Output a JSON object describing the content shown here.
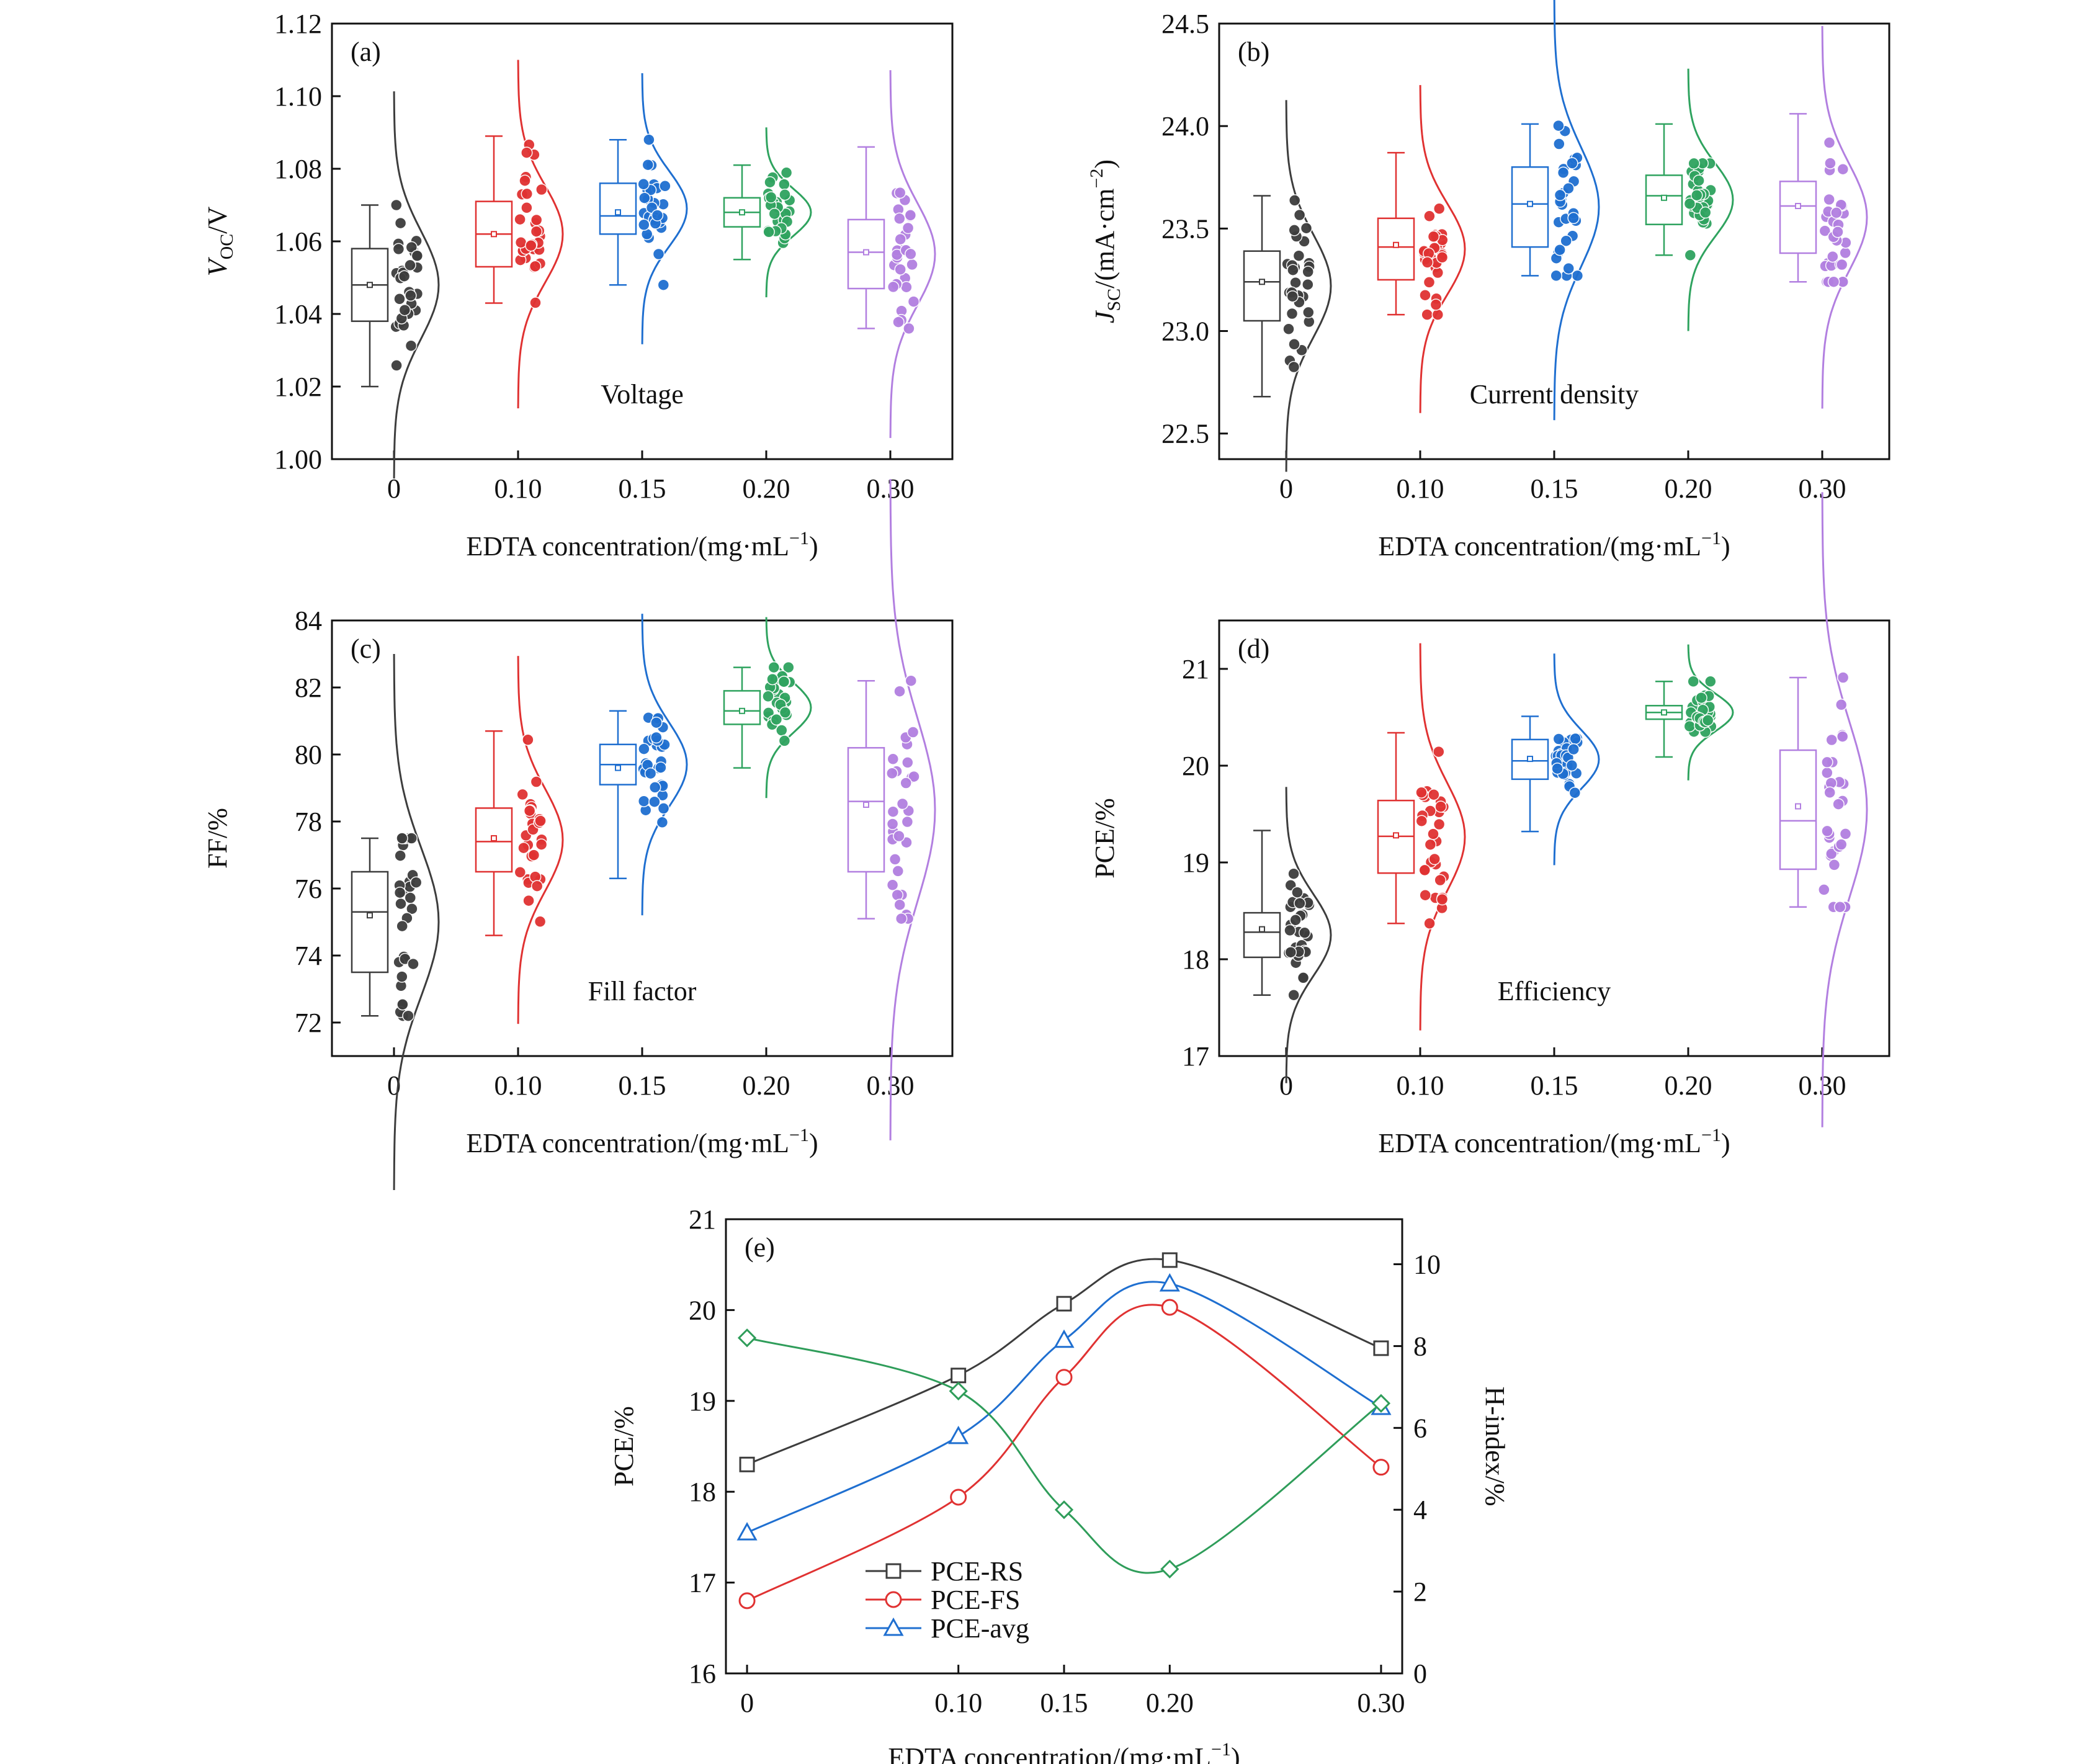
{
  "colors": {
    "black": "#3d3d3d",
    "red": "#e03232",
    "blue": "#1f6fd0",
    "green": "#2fa35f",
    "purple": "#b27fe0",
    "hindex": "#2f9d5a"
  },
  "chart_data": [
    {
      "panel": "(a)",
      "type": "box",
      "annotation": "Voltage",
      "ylabel_main": "V",
      "ylabel_sub": "OC",
      "ylabel_rest": "/V",
      "xlabel": "EDTA concentration/(mg·mL",
      "xlabel_sup": "−1",
      "xlabel_end": ")",
      "categories": [
        "0",
        "0.10",
        "0.15",
        "0.20",
        "0.30"
      ],
      "ylim": [
        1.0,
        1.12
      ],
      "yticks": [
        "1.00",
        "1.02",
        "1.04",
        "1.06",
        "1.08",
        "1.10",
        "1.12"
      ],
      "boxes": [
        {
          "min": 1.02,
          "q1": 1.038,
          "median": 1.048,
          "q3": 1.058,
          "max": 1.07,
          "mean": 1.048
        },
        {
          "min": 1.043,
          "q1": 1.053,
          "median": 1.062,
          "q3": 1.071,
          "max": 1.089,
          "mean": 1.062
        },
        {
          "min": 1.048,
          "q1": 1.062,
          "median": 1.067,
          "q3": 1.076,
          "max": 1.088,
          "mean": 1.068
        },
        {
          "min": 1.055,
          "q1": 1.064,
          "median": 1.068,
          "q3": 1.072,
          "max": 1.081,
          "mean": 1.068
        },
        {
          "min": 1.036,
          "q1": 1.047,
          "median": 1.057,
          "q3": 1.066,
          "max": 1.086,
          "mean": 1.057
        }
      ]
    },
    {
      "panel": "(b)",
      "type": "box",
      "annotation": "Current density",
      "ylabel_main": "J",
      "ylabel_sub": "SC",
      "ylabel_rest": "/(mA·cm",
      "ylabel_sup": "−2",
      "ylabel_end": ")",
      "xlabel": "EDTA concentration/(mg·mL",
      "xlabel_sup": "−1",
      "xlabel_end": ")",
      "categories": [
        "0",
        "0.10",
        "0.15",
        "0.20",
        "0.30"
      ],
      "ylim": [
        22.375,
        24.5
      ],
      "yticks": [
        "22.5",
        "23.0",
        "23.5",
        "24.0",
        "24.5"
      ],
      "boxes": [
        {
          "min": 22.68,
          "q1": 23.05,
          "median": 23.24,
          "q3": 23.39,
          "max": 23.66,
          "mean": 23.24
        },
        {
          "min": 23.08,
          "q1": 23.25,
          "median": 23.41,
          "q3": 23.55,
          "max": 23.87,
          "mean": 23.42
        },
        {
          "min": 23.27,
          "q1": 23.41,
          "median": 23.62,
          "q3": 23.8,
          "max": 24.01,
          "mean": 23.62
        },
        {
          "min": 23.37,
          "q1": 23.52,
          "median": 23.66,
          "q3": 23.76,
          "max": 24.01,
          "mean": 23.65
        },
        {
          "min": 23.24,
          "q1": 23.38,
          "median": 23.61,
          "q3": 23.73,
          "max": 24.06,
          "mean": 23.61
        }
      ]
    },
    {
      "panel": "(c)",
      "type": "box",
      "annotation": "Fill factor",
      "ylabel_main": "FF/%",
      "xlabel": "EDTA concentration/(mg·mL",
      "xlabel_sup": "−1",
      "xlabel_end": ")",
      "categories": [
        "0",
        "0.10",
        "0.15",
        "0.20",
        "0.30"
      ],
      "ylim": [
        71.0,
        84.0
      ],
      "yticks": [
        "72",
        "74",
        "76",
        "78",
        "80",
        "82",
        "84"
      ],
      "boxes": [
        {
          "min": 72.2,
          "q1": 73.5,
          "median": 75.3,
          "q3": 76.5,
          "max": 77.5,
          "mean": 75.2
        },
        {
          "min": 74.6,
          "q1": 76.5,
          "median": 77.4,
          "q3": 78.4,
          "max": 80.7,
          "mean": 77.5
        },
        {
          "min": 76.3,
          "q1": 79.1,
          "median": 79.7,
          "q3": 80.3,
          "max": 81.3,
          "mean": 79.6
        },
        {
          "min": 79.6,
          "q1": 80.9,
          "median": 81.3,
          "q3": 81.9,
          "max": 82.6,
          "mean": 81.3
        },
        {
          "min": 75.1,
          "q1": 76.5,
          "median": 78.6,
          "q3": 80.2,
          "max": 82.2,
          "mean": 78.5
        }
      ]
    },
    {
      "panel": "(d)",
      "type": "box",
      "annotation": "Efficiency",
      "ylabel_main": "PCE/%",
      "xlabel": "EDTA concentration/(mg·mL",
      "xlabel_sup": "−1",
      "xlabel_end": ")",
      "categories": [
        "0",
        "0.10",
        "0.15",
        "0.20",
        "0.30"
      ],
      "ylim": [
        17.0,
        21.5
      ],
      "yticks": [
        "17",
        "18",
        "19",
        "20",
        "21"
      ],
      "boxes": [
        {
          "min": 17.63,
          "q1": 18.02,
          "median": 18.28,
          "q3": 18.48,
          "max": 19.33,
          "mean": 18.31
        },
        {
          "min": 18.37,
          "q1": 18.89,
          "median": 19.27,
          "q3": 19.64,
          "max": 20.34,
          "mean": 19.28
        },
        {
          "min": 19.32,
          "q1": 19.86,
          "median": 20.05,
          "q3": 20.27,
          "max": 20.51,
          "mean": 20.07
        },
        {
          "min": 20.09,
          "q1": 20.48,
          "median": 20.55,
          "q3": 20.62,
          "max": 20.87,
          "mean": 20.55
        },
        {
          "min": 18.54,
          "q1": 18.93,
          "median": 19.43,
          "q3": 20.16,
          "max": 20.91,
          "mean": 19.58
        }
      ]
    },
    {
      "panel": "(e)",
      "type": "line",
      "ylabel_left": "PCE/%",
      "ylabel_right": "H-index/%",
      "xlabel": "EDTA concentration/(mg·mL",
      "xlabel_sup": "−1",
      "xlabel_end": ")",
      "x": [
        0,
        0.1,
        0.15,
        0.2,
        0.3
      ],
      "xticks": [
        "0",
        "0.10",
        "0.15",
        "0.20",
        "0.30"
      ],
      "xlim": [
        -0.01,
        0.31
      ],
      "ylim": [
        16,
        21
      ],
      "yticks": [
        "16",
        "17",
        "18",
        "19",
        "20",
        "21"
      ],
      "ylim_right": [
        0,
        11.1
      ],
      "yticks_right": [
        "0",
        "2",
        "4",
        "6",
        "8",
        "10"
      ],
      "series": [
        {
          "name": "PCE-RS",
          "marker": "square",
          "color": "#3d3d3d",
          "values": [
            18.3,
            19.28,
            20.07,
            20.55,
            19.58
          ]
        },
        {
          "name": "PCE-FS",
          "marker": "circle",
          "color": "#e03232",
          "values": [
            16.8,
            17.94,
            19.26,
            20.03,
            18.27
          ]
        },
        {
          "name": "PCE-avg",
          "marker": "triangle",
          "color": "#1f6fd0",
          "values": [
            17.55,
            18.61,
            19.67,
            20.29,
            18.93
          ]
        },
        {
          "name": "",
          "marker": "diamond",
          "color": "#2f9d5a",
          "axis": "right",
          "values": [
            8.2,
            6.9,
            4.0,
            2.55,
            6.6
          ]
        }
      ]
    }
  ]
}
